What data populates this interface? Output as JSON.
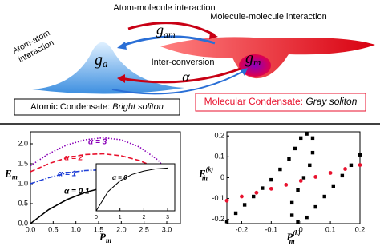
{
  "diagram": {
    "atom_molecule": "Atom-molecule interaction",
    "g_am": {
      "main": "g",
      "sub": "am"
    },
    "atom_atom": [
      "Atom-atom",
      "interaction"
    ],
    "molecule_molecule": "Molecule-molecule interaction",
    "g_a": {
      "main": "g",
      "sub": "a"
    },
    "g_m": {
      "main": "g",
      "sub": "m"
    },
    "inter_conversion": "Inter-conversion",
    "alpha": "α",
    "atomic_box": {
      "text": "Atomic Condensate: ",
      "italic": "Bright soliton"
    },
    "molecular_box": {
      "text": "Molecular Condensate: ",
      "italic": "Gray soliton"
    }
  },
  "chart_data": [
    {
      "type": "line",
      "xlabel": {
        "main": "P",
        "sub": "m"
      },
      "ylabel": {
        "main": "E",
        "sub": "m"
      },
      "xlim": [
        0,
        3.3
      ],
      "ylim": [
        0,
        2.3
      ],
      "xticks": [
        {
          "value": 0,
          "label": "0.0"
        },
        {
          "value": 0.5,
          "label": "0.5"
        },
        {
          "value": 1,
          "label": "1.0"
        },
        {
          "value": 1.5,
          "label": "1.5"
        },
        {
          "value": 2,
          "label": "2.0"
        },
        {
          "value": 2.5,
          "label": "2.5"
        },
        {
          "value": 3,
          "label": "3.0"
        }
      ],
      "yticks": [
        {
          "value": 0,
          "label": "0.0"
        },
        {
          "value": 0.5,
          "label": "0.5"
        },
        {
          "value": 1,
          "label": "1.0"
        },
        {
          "value": 1.5,
          "label": "1.5"
        },
        {
          "value": 2,
          "label": "2.0"
        }
      ],
      "x": [
        0,
        0.4,
        0.8,
        1.2,
        1.6,
        2.0,
        2.4,
        2.8,
        3.14
      ],
      "series": [
        {
          "name": "α = 3",
          "color": "#8a00b8",
          "style": "dotted",
          "values": [
            1.45,
            1.75,
            1.97,
            2.1,
            2.15,
            2.1,
            1.92,
            1.6,
            1.15
          ]
        },
        {
          "name": "α = 2",
          "color": "#e8112d",
          "style": "dashed",
          "values": [
            1.3,
            1.5,
            1.65,
            1.73,
            1.75,
            1.7,
            1.58,
            1.38,
            1.12
          ]
        },
        {
          "name": "α = 1",
          "color": "#1f3fd6",
          "style": "dashdot",
          "values": [
            1.0,
            1.15,
            1.27,
            1.33,
            1.35,
            1.32,
            1.27,
            1.2,
            1.12
          ]
        },
        {
          "name": "α = 0.1",
          "color": "#000000",
          "style": "solid",
          "values": [
            0,
            0.35,
            0.6,
            0.78,
            0.9,
            1.0,
            1.06,
            1.1,
            1.12
          ]
        }
      ]
    },
    {
      "type": "line",
      "xlim": [
        0,
        3.3
      ],
      "ylim": [
        0,
        1.1
      ],
      "xticks": [
        0,
        1,
        2,
        3
      ],
      "x": [
        0,
        0.5,
        1,
        1.5,
        2,
        2.5,
        3
      ],
      "series": [
        {
          "name": "α = 0",
          "color": "#000000",
          "style": "solid",
          "values": [
            0,
            0.45,
            0.7,
            0.85,
            0.93,
            0.98,
            1.0
          ]
        }
      ]
    },
    {
      "type": "scatter",
      "xlabel": {
        "main": "P",
        "sub": "m",
        "sup": "(k)"
      },
      "ylabel": {
        "main": "E",
        "sub": "m",
        "sup": "(k)"
      },
      "xlim": [
        -0.25,
        0.2
      ],
      "ylim": [
        -0.22,
        0.22
      ],
      "xticks": [
        -0.2,
        -0.1,
        0,
        0.1,
        0.2
      ],
      "yticks": [
        -0.2,
        -0.1,
        0,
        0.1,
        0.2
      ],
      "series": [
        {
          "color": "#000000",
          "marker": "square",
          "x": [
            -0.25,
            -0.22,
            -0.19,
            -0.16,
            -0.13,
            -0.1,
            -0.07,
            -0.04,
            -0.02,
            0.0,
            0.02,
            0.04,
            0.04,
            0.03,
            0.01,
            -0.01,
            -0.03,
            -0.03,
            -0.01,
            0.02,
            0.05,
            0.08,
            0.11,
            0.14,
            0.17,
            0.2
          ],
          "values": [
            -0.21,
            -0.17,
            -0.13,
            -0.09,
            -0.05,
            -0.01,
            0.04,
            0.09,
            0.14,
            0.19,
            0.21,
            0.19,
            0.12,
            0.06,
            0.0,
            -0.06,
            -0.12,
            -0.18,
            -0.21,
            -0.19,
            -0.14,
            -0.09,
            -0.04,
            0.01,
            0.06,
            0.11
          ]
        },
        {
          "color": "#e8112d",
          "marker": "circle",
          "x": [
            -0.25,
            -0.2,
            -0.15,
            -0.1,
            -0.05,
            0,
            0.05,
            0.1,
            0.15,
            0.2
          ],
          "values": [
            -0.11,
            -0.09,
            -0.072,
            -0.053,
            -0.034,
            -0.015,
            0.004,
            0.023,
            0.042,
            0.061
          ]
        }
      ]
    }
  ]
}
